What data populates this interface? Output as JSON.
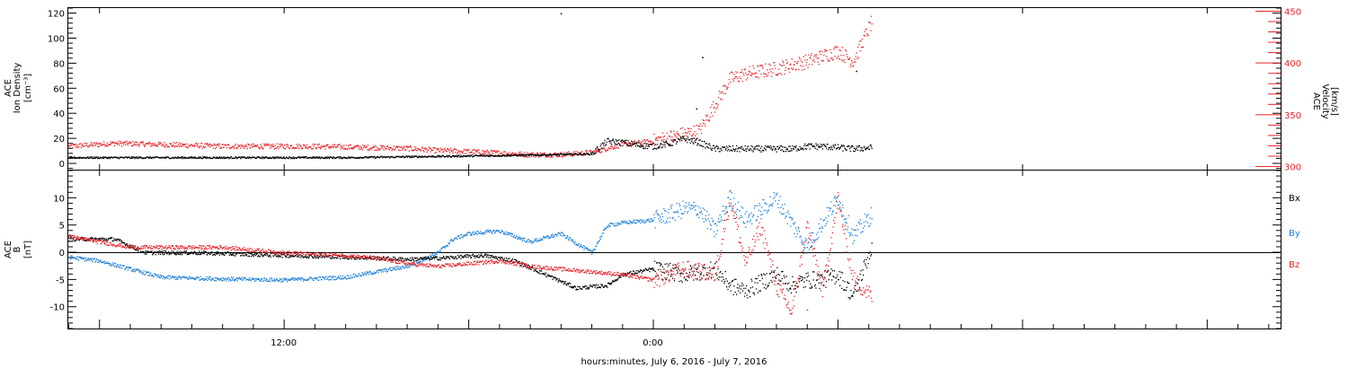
{
  "colors": {
    "black": "#000000",
    "red": "#e8242a",
    "blue": "#1a7fd6"
  },
  "xlabel": "hours:minutes, July  6, 2016 - July  7, 2016",
  "chart_data": [
    {
      "type": "scatter",
      "panel": "density-velocity",
      "left_axis": {
        "label_lines": [
          "ACE",
          "Ion Density",
          "[cm⁻³]"
        ],
        "range": [
          -5,
          124
        ],
        "ticks": [
          "0",
          "20",
          "40",
          "60",
          "80",
          "100",
          "120"
        ]
      },
      "right_axis": {
        "label_lines": [
          "ACE",
          "Velocity",
          "[km/s]"
        ],
        "range": [
          297,
          453
        ],
        "ticks": [
          "300",
          "350",
          "400",
          "450"
        ],
        "color": "red"
      },
      "x_unit": "hours since 2016-07-06 00:00",
      "xlim": [
        5.0,
        44.4
      ],
      "series": [
        {
          "axis": "left",
          "color": "black",
          "x": [
            5,
            14,
            20,
            22,
            22.5,
            23,
            23.5,
            24,
            24.5,
            25,
            25.5,
            26,
            26.5,
            27,
            27.5,
            28,
            28.5,
            29,
            29.5,
            30,
            30.5,
            31.1
          ],
          "y": [
            5,
            5,
            7,
            8,
            18,
            17,
            15,
            14,
            16,
            20,
            17,
            12,
            12,
            12,
            12,
            12,
            12,
            14,
            14,
            13,
            12,
            13
          ]
        },
        {
          "axis": "right",
          "color": "red",
          "x": [
            5,
            6.5,
            10,
            13,
            16,
            17,
            18,
            20,
            21,
            22,
            23,
            24,
            25,
            25.5,
            26,
            26.5,
            27,
            28,
            29,
            30,
            30.5,
            31.1
          ],
          "y": [
            320,
            323,
            320,
            320,
            318,
            316,
            315,
            312,
            312,
            314,
            322,
            325,
            332,
            335,
            360,
            385,
            390,
            395,
            402,
            412,
            402,
            440
          ]
        }
      ],
      "outliers": [
        {
          "x": 21.0,
          "y": 120
        },
        {
          "x": 25.6,
          "y": 85
        },
        {
          "x": 25.4,
          "y": 44
        },
        {
          "x": 30.6,
          "y": 74
        }
      ]
    },
    {
      "type": "scatter",
      "panel": "magnetic-field",
      "left_axis": {
        "label_lines": [
          "ACE",
          "B",
          "[nT]"
        ],
        "range": [
          -14,
          15
        ],
        "ticks": [
          "-10",
          "-5",
          "0",
          "5",
          "10"
        ]
      },
      "x_unit": "hours since 2016-07-06 00:00",
      "xlim": [
        5.0,
        44.4
      ],
      "zero_line": true,
      "legend": [
        "Bx",
        "By",
        "Bz"
      ],
      "legend_placement": "right",
      "series": [
        {
          "name": "Bx",
          "color": "black",
          "x": [
            5,
            6.5,
            7.5,
            9,
            12,
            14,
            16,
            17,
            18.5,
            19.5,
            20.5,
            21.5,
            22.5,
            23,
            24,
            25,
            26,
            26.5,
            27,
            28,
            28.5,
            29,
            29.5,
            30,
            30.5,
            31.1
          ],
          "y": [
            2.5,
            2.5,
            0,
            0,
            -0.5,
            -0.8,
            -1.2,
            -1,
            -0.5,
            -1.5,
            -4,
            -6.5,
            -6,
            -4,
            -3,
            -4,
            -3,
            -6,
            -7,
            -4,
            -6,
            -5,
            -5,
            -4,
            -8,
            1
          ]
        },
        {
          "name": "By",
          "color": "blue",
          "x": [
            5,
            6,
            7,
            8,
            10,
            12,
            14,
            15,
            16,
            17,
            17.5,
            18,
            19,
            20,
            21,
            22,
            22.5,
            23,
            24,
            25,
            25.5,
            26,
            26.5,
            27,
            28,
            29,
            30,
            30.5,
            31.1
          ],
          "y": [
            -0.8,
            -1.5,
            -3,
            -4.5,
            -4.8,
            -5,
            -4.5,
            -3.5,
            -2.5,
            0,
            2.5,
            3.5,
            4,
            2,
            3.5,
            0,
            5,
            5.5,
            6,
            8,
            8,
            4,
            10,
            6,
            10,
            1,
            10,
            3,
            7
          ]
        },
        {
          "name": "Bz",
          "color": "red",
          "x": [
            5,
            6,
            7,
            8,
            10,
            12,
            14,
            15,
            16,
            17,
            18,
            19,
            20,
            21,
            22,
            23,
            24,
            25,
            26,
            26.5,
            27,
            27.5,
            28,
            28.5,
            29,
            29.5,
            30,
            30.5,
            31.1
          ],
          "y": [
            3,
            2,
            1,
            1,
            1,
            0,
            -0.5,
            -1,
            -2,
            -2.5,
            -2,
            -1.5,
            -2.5,
            -3,
            -3.5,
            -4,
            -5,
            -3,
            -4,
            10,
            -2,
            5,
            -6,
            -11,
            5,
            -7,
            10,
            -5,
            -8
          ]
        }
      ],
      "outliers": [
        {
          "x": 29.0,
          "y": -10.5
        }
      ]
    }
  ],
  "x_axis": {
    "ticks": [
      "12:00",
      "0:00"
    ],
    "tick_hours": [
      12,
      24
    ]
  }
}
